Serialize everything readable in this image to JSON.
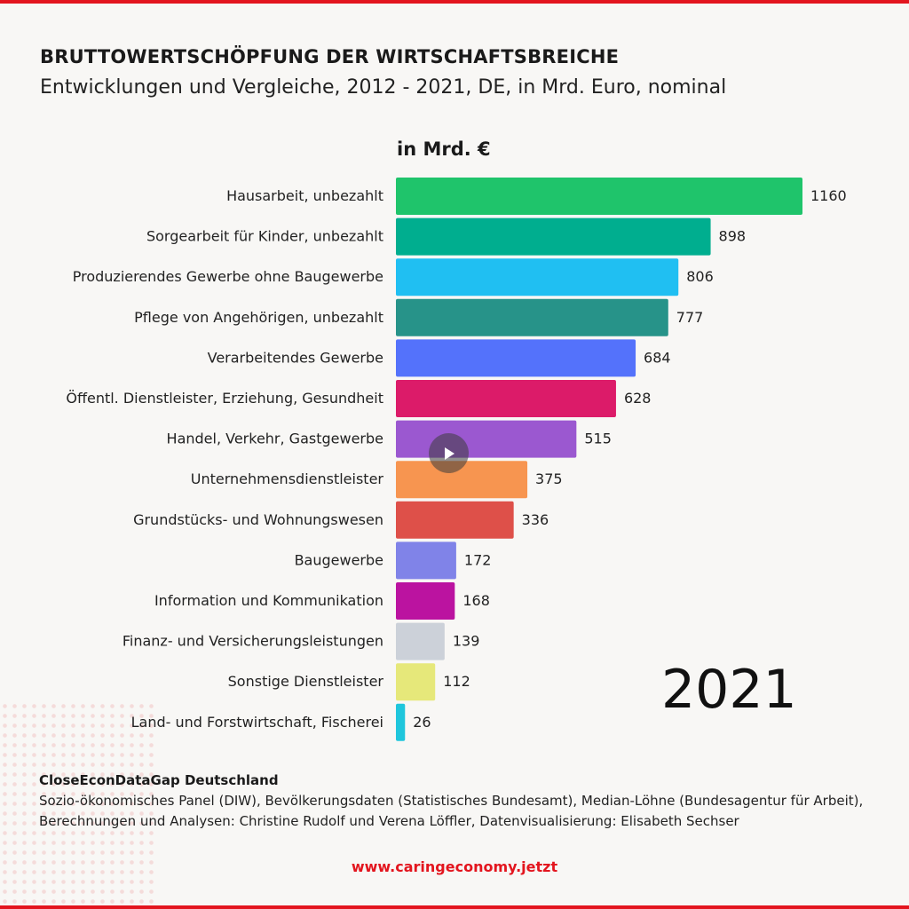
{
  "header": {
    "title": "BRUTTOWERTSCHÖPFUNG DER WIRTSCHAFTSBREICHE",
    "subtitle": "Entwicklungen und Vergleiche, 2012 - 2021, DE, in Mrd. Euro, nominal"
  },
  "chart_data": {
    "type": "bar",
    "orientation": "horizontal",
    "unit_label": "in Mrd. €",
    "year": "2021",
    "categories": [
      "Hausarbeit, unbezahlt",
      "Sorgearbeit für Kinder, unbezahlt",
      "Produzierendes Gewerbe ohne Baugewerbe",
      "Pflege von Angehörigen, unbezahlt",
      "Verarbeitendes Gewerbe",
      "Öffentl. Dienstleister, Erziehung, Gesundheit",
      "Handel, Verkehr, Gastgewerbe",
      "Unternehmensdienstleister",
      "Grundstücks- und Wohnungswesen",
      "Baugewerbe",
      "Information und Kommunikation",
      "Finanz- und Versicherungsleistungen",
      "Sonstige Dienstleister",
      "Land- und Forstwirtschaft, Fischerei"
    ],
    "values": [
      1160,
      898,
      806,
      777,
      684,
      628,
      515,
      375,
      336,
      172,
      168,
      139,
      112,
      26
    ],
    "colors": [
      "#1fc46b",
      "#00ae8f",
      "#20bff2",
      "#279389",
      "#5472fb",
      "#dc1b69",
      "#9b58d0",
      "#f79550",
      "#de5049",
      "#8083e8",
      "#bb13a0",
      "#ccd1d9",
      "#e6e87a",
      "#1fc6dc"
    ],
    "xlim": [
      0,
      1160
    ],
    "grid": false,
    "legend": "none"
  },
  "source": {
    "title": "CloseEconDataGap Deutschland",
    "text": "Sozio-ökonomisches Panel (DIW), Bevölkerungsdaten (Statistisches Bundesamt), Median-Löhne (Bundesagentur für Arbeit), Berechnungen und Analysen: Christine Rudolf und Verena Löffler, Datenvisualisierung: Elisabeth Sechser"
  },
  "footer": {
    "website": "www.caringeconomy.jetzt"
  },
  "controls": {
    "play_icon": "play-icon"
  },
  "colors": {
    "accent": "#e3151e",
    "background": "#f8f7f5"
  }
}
